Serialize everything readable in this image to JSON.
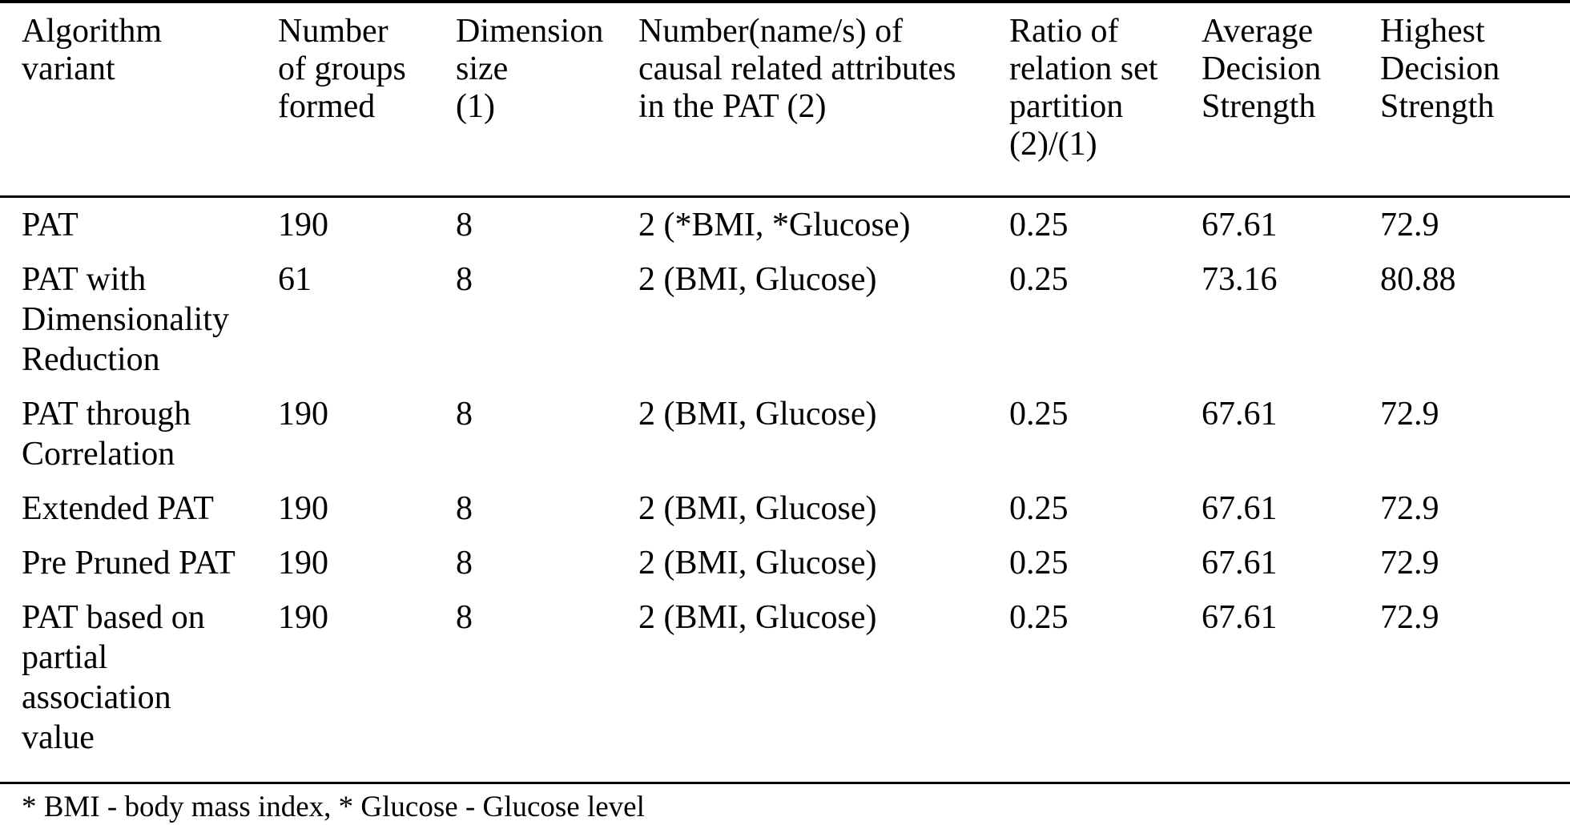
{
  "colors": {
    "background": "#ffffff",
    "text": "#000000",
    "rule": "#000000"
  },
  "table": {
    "columns": [
      "Algorithm\nvariant",
      "Number\nof groups\nformed",
      "Dimension\nsize\n(1)",
      "Number(name/s) of\ncausal related attributes\nin the PAT (2)",
      "Ratio of\nrelation set\npartition\n(2)/(1)",
      "Average\nDecision\nStrength",
      "Highest\nDecision\nStrength"
    ],
    "rows": [
      {
        "cells": [
          "PAT",
          "190",
          "8",
          "2 (*BMI, *Glucose)",
          "0.25",
          "67.61",
          "72.9"
        ]
      },
      {
        "cells": [
          "PAT with\nDimensionality\nReduction",
          "61",
          "8",
          "2 (BMI, Glucose)",
          "0.25",
          "73.16",
          "80.88"
        ]
      },
      {
        "cells": [
          "PAT through\nCorrelation",
          "190",
          "8",
          "2 (BMI, Glucose)",
          "0.25",
          "67.61",
          "72.9"
        ]
      },
      {
        "cells": [
          "Extended PAT",
          "190",
          "8",
          "2 (BMI, Glucose)",
          "0.25",
          "67.61",
          "72.9"
        ]
      },
      {
        "cells": [
          "Pre Pruned PAT",
          "190",
          "8",
          "2 (BMI, Glucose)",
          "0.25",
          "67.61",
          "72.9"
        ]
      },
      {
        "cells": [
          "PAT based on\npartial\nassociation\nvalue",
          "190",
          "8",
          "2 (BMI, Glucose)",
          "0.25",
          "67.61",
          "72.9"
        ]
      }
    ],
    "footnote": "* BMI - body mass index, * Glucose - Glucose level"
  }
}
